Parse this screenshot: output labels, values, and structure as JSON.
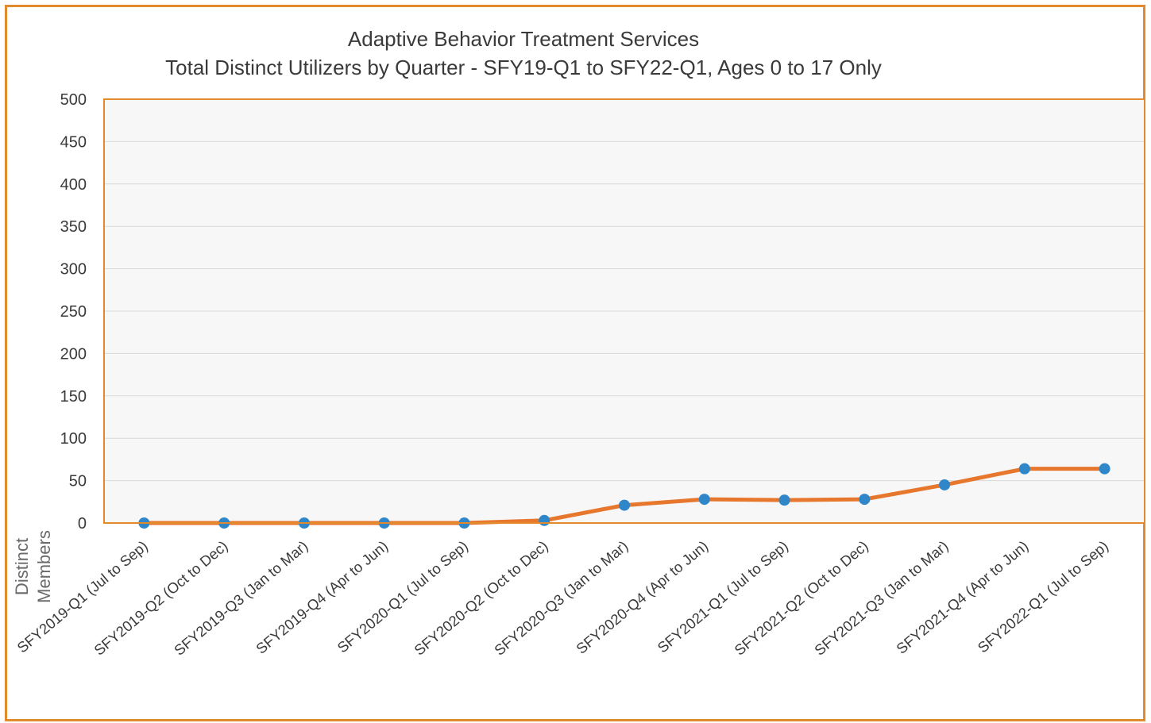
{
  "chart_data": {
    "type": "line",
    "title": "Adaptive Behavior Treatment Services",
    "subtitle": "Total Distinct Utilizers by Quarter - SFY19-Q1 to SFY22-Q1, Ages 0 to 17 Only",
    "xlabel": "",
    "ylabel_lines": [
      "Distinct",
      "Members"
    ],
    "ylim": [
      0,
      500
    ],
    "yticks": [
      0,
      50,
      100,
      150,
      200,
      250,
      300,
      350,
      400,
      450,
      500
    ],
    "grid": true,
    "categories": [
      "SFY2019-Q1  (Jul to Sep)",
      "SFY2019-Q2  (Oct to Dec)",
      "SFY2019-Q3  (Jan to Mar)",
      "SFY2019-Q4  (Apr to Jun)",
      "SFY2020-Q1  (Jul to Sep)",
      "SFY2020-Q2  (Oct to Dec)",
      "SFY2020-Q3  (Jan to Mar)",
      "SFY2020-Q4  (Apr to Jun)",
      "SFY2021-Q1  (Jul to Sep)",
      "SFY2021-Q2  (Oct to Dec)",
      "SFY2021-Q3  (Jan to Mar)",
      "SFY2021-Q4  (Apr to Jun)",
      "SFY2022-Q1  (Jul to Sep)"
    ],
    "series": [
      {
        "values": [
          0,
          0,
          0,
          0,
          0,
          3,
          21,
          28,
          27,
          28,
          45,
          64,
          64
        ]
      }
    ],
    "colors": {
      "line": "#E8772E",
      "marker": "#2F86C9",
      "border": "#E38B2C",
      "plot_bg": "#F7F7F7",
      "grid": "#D9D9D9"
    }
  }
}
